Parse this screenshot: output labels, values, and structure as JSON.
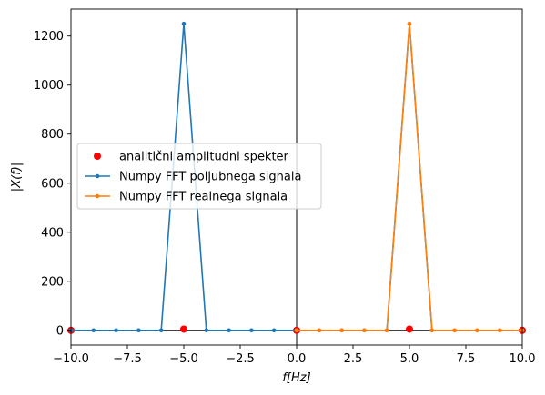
{
  "chart_data": {
    "type": "line",
    "xlabel": "f[Hz]",
    "ylabel": "|X(f)|",
    "xlim": [
      -10,
      10
    ],
    "ylim": [
      -60,
      1310
    ],
    "xticks": [
      -10,
      -7.5,
      -5,
      -2.5,
      0,
      2.5,
      5,
      7.5,
      10
    ],
    "xtick_labels": [
      "−10.0",
      "−7.5",
      "−5.0",
      "−2.5",
      "0.0",
      "2.5",
      "5.0",
      "7.5",
      "10.0"
    ],
    "yticks": [
      0,
      200,
      400,
      600,
      800,
      1000,
      1200
    ],
    "ytick_labels": [
      "0",
      "200",
      "400",
      "600",
      "800",
      "1000",
      "1200"
    ],
    "grid": false,
    "legend_position": "center-left",
    "reference_lines": {
      "vertical_x": 0,
      "horizontal_y": 0
    },
    "series": [
      {
        "name": "analitični amplitudni spekter",
        "style": "markers",
        "color": "#ff0000",
        "x": [
          -10,
          -5,
          0,
          5,
          10
        ],
        "y": [
          0,
          5,
          0,
          5,
          0
        ]
      },
      {
        "name": "Numpy FFT poljubnega signala",
        "style": "line-markers",
        "color": "#1f77b4",
        "x": [
          -10,
          -9,
          -8,
          -7,
          -6,
          -5,
          -4,
          -3,
          -2,
          -1,
          0,
          1,
          2,
          3,
          4,
          5,
          6,
          7,
          8,
          9,
          10
        ],
        "y": [
          0,
          0,
          0,
          0,
          0,
          1250,
          0,
          0,
          0,
          0,
          0,
          0,
          0,
          0,
          0,
          1250,
          0,
          0,
          0,
          0,
          0
        ]
      },
      {
        "name": "Numpy FFT realnega signala",
        "style": "line-markers",
        "color": "#ff7f0e",
        "x": [
          0,
          1,
          2,
          3,
          4,
          5,
          6,
          7,
          8,
          9,
          10
        ],
        "y": [
          0,
          0,
          0,
          0,
          0,
          1250,
          0,
          0,
          0,
          0,
          0
        ]
      }
    ]
  }
}
